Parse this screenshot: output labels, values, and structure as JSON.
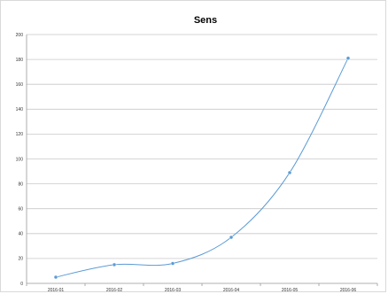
{
  "chart_data": {
    "type": "line",
    "title": "Sens",
    "xlabel": "",
    "ylabel": "",
    "categories": [
      "2016-01",
      "2016-02",
      "2016-03",
      "2016-04",
      "2016-05",
      "2016-06"
    ],
    "series": [
      {
        "values": [
          5,
          15,
          16,
          37,
          89,
          181
        ]
      }
    ],
    "ylim": [
      0,
      200
    ],
    "yticks": [
      0,
      20,
      40,
      60,
      80,
      100,
      120,
      140,
      160,
      180,
      200
    ],
    "grid": true,
    "smooth": true,
    "legend": "none",
    "colors": {
      "line": "#5b9bd5",
      "marker": "#5b9bd5",
      "grid": "#c8c8c8",
      "axis": "#999999"
    }
  }
}
